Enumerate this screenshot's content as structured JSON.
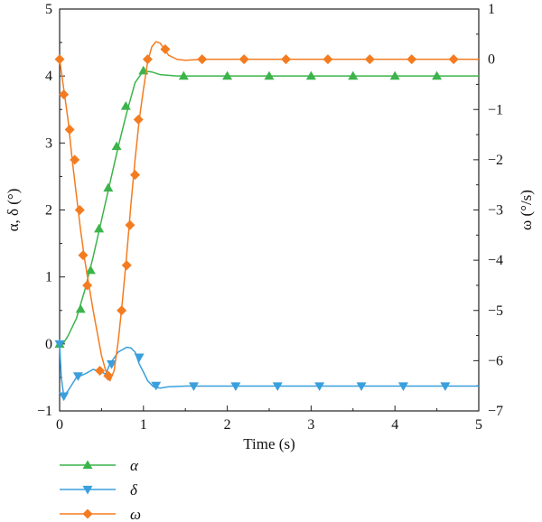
{
  "chart_data": {
    "type": "line",
    "xlabel": "Time (s)",
    "ylabel_left": "α, δ (°)",
    "ylabel_right": "ω (°/s)",
    "xlim": [
      0,
      5
    ],
    "ylim_left": [
      -1,
      5
    ],
    "ylim_right": [
      -7,
      1
    ],
    "x_ticks": [
      "0",
      "1",
      "2",
      "3",
      "4",
      "5"
    ],
    "y_left_ticks": [
      "−1",
      "0",
      "1",
      "2",
      "3",
      "4",
      "5"
    ],
    "y_right_ticks": [
      "−7",
      "−6",
      "−5",
      "−4",
      "−3",
      "−2",
      "−1",
      "0",
      "1"
    ],
    "grid": false,
    "legend_position": "bottom-left-outside",
    "series": [
      {
        "name": "α",
        "axis": "left",
        "color": "#3cb44b",
        "marker": "triangle-up",
        "line": [
          [
            0,
            0
          ],
          [
            0.05,
            0.02
          ],
          [
            0.1,
            0.12
          ],
          [
            0.2,
            0.38
          ],
          [
            0.3,
            0.8
          ],
          [
            0.4,
            1.3
          ],
          [
            0.5,
            1.85
          ],
          [
            0.6,
            2.4
          ],
          [
            0.7,
            2.95
          ],
          [
            0.8,
            3.45
          ],
          [
            0.9,
            3.9
          ],
          [
            1.0,
            4.08
          ],
          [
            1.1,
            4.06
          ],
          [
            1.2,
            4.02
          ],
          [
            1.4,
            4.0
          ],
          [
            2.0,
            4.0
          ],
          [
            5.0,
            4.0
          ]
        ],
        "markers": [
          [
            0,
            0
          ],
          [
            0.25,
            0.52
          ],
          [
            0.37,
            1.1
          ],
          [
            0.47,
            1.72
          ],
          [
            0.58,
            2.33
          ],
          [
            0.68,
            2.95
          ],
          [
            0.79,
            3.55
          ],
          [
            1.0,
            4.08
          ],
          [
            1.48,
            4.0
          ],
          [
            2.0,
            4.0
          ],
          [
            2.5,
            4.0
          ],
          [
            3.0,
            4.0
          ],
          [
            3.5,
            4.0
          ],
          [
            4.0,
            4.0
          ],
          [
            4.5,
            4.0
          ]
        ]
      },
      {
        "name": "δ",
        "axis": "left",
        "color": "#3a9fdd",
        "marker": "triangle-down",
        "line": [
          [
            0,
            0
          ],
          [
            0.02,
            -0.5
          ],
          [
            0.05,
            -0.78
          ],
          [
            0.1,
            -0.7
          ],
          [
            0.2,
            -0.5
          ],
          [
            0.3,
            -0.45
          ],
          [
            0.4,
            -0.38
          ],
          [
            0.5,
            -0.42
          ],
          [
            0.55,
            -0.45
          ],
          [
            0.6,
            -0.3
          ],
          [
            0.7,
            -0.12
          ],
          [
            0.8,
            -0.05
          ],
          [
            0.85,
            -0.06
          ],
          [
            0.9,
            -0.12
          ],
          [
            0.95,
            -0.3
          ],
          [
            1.0,
            -0.42
          ],
          [
            1.05,
            -0.55
          ],
          [
            1.12,
            -0.64
          ],
          [
            1.2,
            -0.66
          ],
          [
            1.3,
            -0.64
          ],
          [
            1.5,
            -0.63
          ],
          [
            5.0,
            -0.63
          ]
        ],
        "markers": [
          [
            0,
            0
          ],
          [
            0.05,
            -0.78
          ],
          [
            0.22,
            -0.48
          ],
          [
            0.62,
            -0.3
          ],
          [
            0.95,
            -0.2
          ],
          [
            1.15,
            -0.62
          ],
          [
            1.6,
            -0.63
          ],
          [
            2.1,
            -0.63
          ],
          [
            2.6,
            -0.63
          ],
          [
            3.1,
            -0.63
          ],
          [
            3.6,
            -0.63
          ],
          [
            4.1,
            -0.63
          ],
          [
            4.6,
            -0.63
          ]
        ]
      },
      {
        "name": "ω",
        "axis": "right",
        "color": "#f47c20",
        "marker": "diamond",
        "line": [
          [
            0,
            0
          ],
          [
            0.05,
            -0.6
          ],
          [
            0.1,
            -1.2
          ],
          [
            0.15,
            -2.0
          ],
          [
            0.2,
            -2.7
          ],
          [
            0.25,
            -3.4
          ],
          [
            0.3,
            -4.0
          ],
          [
            0.35,
            -4.5
          ],
          [
            0.4,
            -5.0
          ],
          [
            0.45,
            -5.45
          ],
          [
            0.5,
            -5.9
          ],
          [
            0.55,
            -6.2
          ],
          [
            0.6,
            -6.4
          ],
          [
            0.65,
            -6.2
          ],
          [
            0.7,
            -5.6
          ],
          [
            0.75,
            -4.8
          ],
          [
            0.8,
            -3.9
          ],
          [
            0.85,
            -2.9
          ],
          [
            0.9,
            -2.0
          ],
          [
            0.95,
            -1.2
          ],
          [
            1.0,
            -0.6
          ],
          [
            1.05,
            -0.05
          ],
          [
            1.1,
            0.25
          ],
          [
            1.15,
            0.35
          ],
          [
            1.2,
            0.32
          ],
          [
            1.25,
            0.2
          ],
          [
            1.3,
            0.08
          ],
          [
            1.4,
            0.0
          ],
          [
            1.5,
            -0.02
          ],
          [
            1.7,
            0.0
          ],
          [
            5.0,
            0.0
          ]
        ],
        "markers": [
          [
            0,
            0
          ],
          [
            0.05,
            -0.7
          ],
          [
            0.12,
            -1.4
          ],
          [
            0.18,
            -2.0
          ],
          [
            0.24,
            -3.0
          ],
          [
            0.28,
            -3.9
          ],
          [
            0.33,
            -4.5
          ],
          [
            0.48,
            -6.2
          ],
          [
            0.58,
            -6.3
          ],
          [
            0.74,
            -5.0
          ],
          [
            0.8,
            -4.1
          ],
          [
            0.84,
            -3.3
          ],
          [
            0.9,
            -2.3
          ],
          [
            0.94,
            -1.2
          ],
          [
            1.05,
            0.0
          ],
          [
            1.26,
            0.2
          ],
          [
            1.7,
            0.0
          ],
          [
            2.2,
            0.0
          ],
          [
            2.7,
            0.0
          ],
          [
            3.2,
            0.0
          ],
          [
            3.7,
            0.0
          ],
          [
            4.2,
            0.0
          ],
          [
            4.7,
            0.0
          ]
        ]
      }
    ]
  }
}
